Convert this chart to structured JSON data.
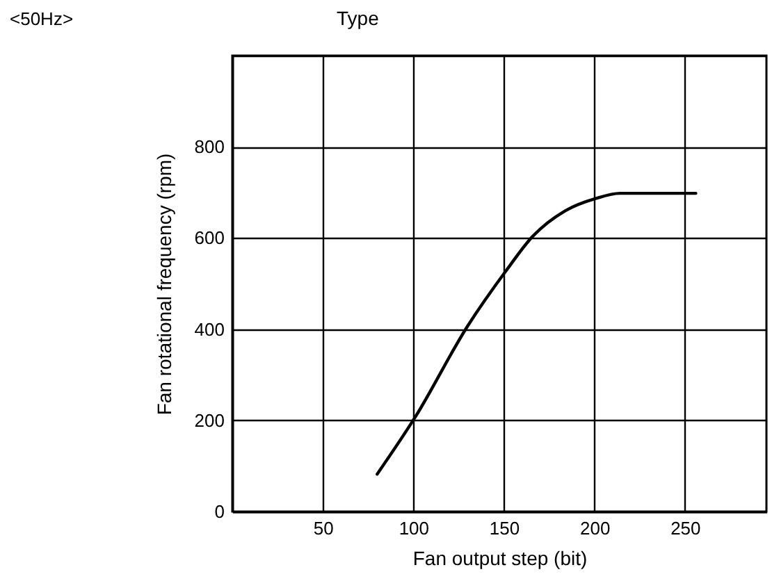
{
  "chart_data": {
    "type": "line",
    "title": "Type",
    "annotations": [
      "<50Hz>"
    ],
    "xlabel": "Fan output step (bit)",
    "ylabel": "Fan rotational frequency (rpm)",
    "x": [
      80,
      101,
      130,
      151,
      166,
      184,
      201,
      214,
      256
    ],
    "series": [
      {
        "color": "#000000",
        "values": [
          82,
          207,
          407,
          527,
          604,
          660,
          687,
          698,
          698
        ]
      }
    ],
    "xlim": [
      0,
      295
    ],
    "xticks": [
      50,
      100,
      150,
      200,
      250
    ],
    "ylim": [
      0,
      1000
    ],
    "yticks": [
      0,
      200,
      400,
      600,
      800,
      {
        "value": 1000,
        "label": null
      }
    ],
    "grid": true,
    "legend": false,
    "marker": "none",
    "line_style": "solid"
  }
}
